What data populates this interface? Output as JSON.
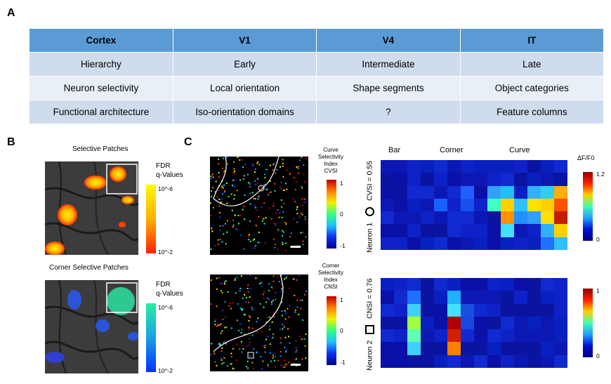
{
  "panels": {
    "a": "A",
    "b": "B",
    "c": "C"
  },
  "table": {
    "header": [
      "Cortex",
      "V1",
      "V4",
      "IT"
    ],
    "rows": [
      [
        "Hierarchy",
        "Early",
        "Intermediate",
        "Late"
      ],
      [
        "Neuron selectivity",
        "Local orientation",
        "Shape segments",
        "Object categories"
      ],
      [
        "Functional architecture",
        "Iso-orientation domains",
        "?",
        "Feature columns"
      ]
    ]
  },
  "panel_b": {
    "top_title": "Selective Patches",
    "top_legend": [
      "FDR",
      "q-Values"
    ],
    "top_ticks": [
      "10^-6",
      "10^-2"
    ],
    "bottom_title": "Corner Selective Patches",
    "bottom_legend": [
      "FDR",
      "q-Values"
    ],
    "bottom_ticks": [
      "10^-6",
      "10^-2"
    ]
  },
  "panel_c": {
    "top_cbar_label": [
      "Curve",
      "Selectivity",
      "Index",
      "CVSI"
    ],
    "top_cbar_ticks": [
      "1",
      "0",
      "-1"
    ],
    "bottom_cbar_label": [
      "Corner",
      "Selectivity",
      "Index",
      "CNSI"
    ],
    "bottom_cbar_ticks": [
      "1",
      "0",
      "-1"
    ],
    "column_headers": [
      "Bar",
      "Corner",
      "Curve"
    ],
    "dff_label": "ΔF/F0",
    "top_dff_ticks": [
      "1.2",
      "0"
    ],
    "bottom_dff_ticks": [
      "1",
      "0"
    ],
    "neuron1_label": "Neuron 1",
    "cvsi_value": "CVSI = 0.55",
    "neuron2_label": "Neuron 2",
    "cnsi_value": "CNSI = 0.76"
  },
  "colors": {
    "header": "#5b9bd5",
    "row_dark": "#cfdcee",
    "row_light": "#e9eff7",
    "heatmap_base": "#0a10a8"
  }
}
